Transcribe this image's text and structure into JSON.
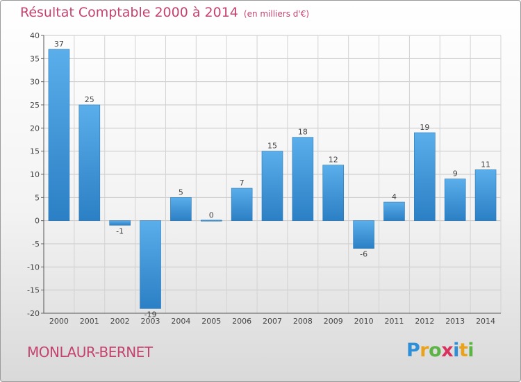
{
  "title": "Résultat Comptable 2000 à 2014",
  "subtitle": "(en milliers d'€)",
  "commune": "MONLAUR-BERNET",
  "logo": {
    "letters": [
      "P",
      "r",
      "o",
      "x",
      "i",
      "t",
      "i"
    ],
    "colors": [
      "#2f8fd6",
      "#e8a21d",
      "#5db344",
      "#d9325f",
      "#2f8fd6",
      "#e8a21d",
      "#5db344"
    ]
  },
  "colors": {
    "bar_top": "#5aaeea",
    "bar_bottom": "#2b7fc4",
    "title": "#c4436d"
  },
  "chart_data": {
    "type": "bar",
    "title": "Résultat Comptable 2000 à 2014",
    "ylabel": "en milliers d'€",
    "categories": [
      "2000",
      "2001",
      "2002",
      "2003",
      "2004",
      "2005",
      "2006",
      "2007",
      "2008",
      "2009",
      "2010",
      "2011",
      "2012",
      "2013",
      "2014"
    ],
    "values": [
      37,
      25,
      -1,
      -19,
      5,
      0,
      7,
      15,
      18,
      12,
      -6,
      4,
      19,
      9,
      11
    ],
    "ylim": [
      -20,
      40
    ],
    "yticks": [
      40,
      35,
      30,
      25,
      20,
      15,
      10,
      5,
      0,
      -5,
      -10,
      -15,
      -20
    ],
    "grid": true
  }
}
